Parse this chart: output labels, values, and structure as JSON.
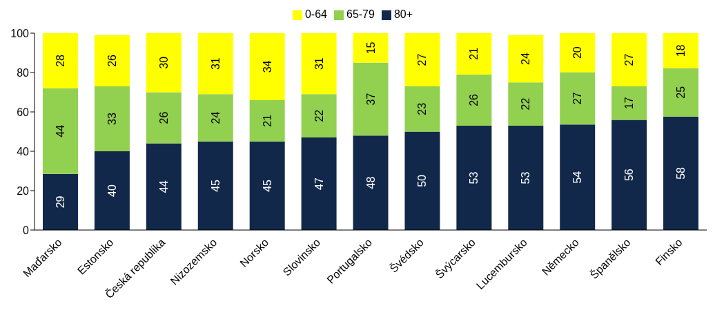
{
  "chart_data": {
    "type": "bar",
    "stacked": true,
    "categories": [
      "Maďarsko",
      "Estonsko",
      "Česká republika",
      "Nizozemsko",
      "Norsko",
      "Slovinsko",
      "Portugalsko",
      "Švédsko",
      "Švýcarsko",
      "Lucembursko",
      "Německo",
      "Španělsko",
      "Finsko"
    ],
    "series": [
      {
        "name": "80+",
        "color": "#12284a",
        "values": [
          28.5,
          40,
          44,
          45,
          45,
          47,
          48,
          50,
          53,
          53,
          53.6,
          56,
          57.6
        ],
        "value_labels": [
          "29",
          "40",
          "44",
          "45",
          "45",
          "47",
          "48",
          "50",
          "53",
          "53",
          "54",
          "56",
          "58"
        ]
      },
      {
        "name": "65-79",
        "color": "#92d050",
        "values": [
          43.5,
          33,
          26,
          24,
          21,
          22,
          37,
          23,
          26,
          22,
          26.6,
          17,
          24.6
        ],
        "value_labels": [
          "44",
          "33",
          "26",
          "24",
          "21",
          "22",
          "37",
          "23",
          "26",
          "22",
          "27",
          "17",
          "25"
        ]
      },
      {
        "name": "0-64",
        "color": "#ffff00",
        "values": [
          28,
          26,
          30,
          31,
          34,
          31,
          15,
          27,
          21,
          24,
          19.8,
          27,
          17.8
        ],
        "value_labels": [
          "28",
          "26",
          "30",
          "31",
          "34",
          "31",
          "15",
          "27",
          "21",
          "24",
          "20",
          "27",
          "18"
        ]
      }
    ],
    "ylim": [
      0,
      100
    ],
    "yticks": [
      0,
      20,
      40,
      60,
      80,
      100
    ],
    "grid": false,
    "legend": "top"
  }
}
